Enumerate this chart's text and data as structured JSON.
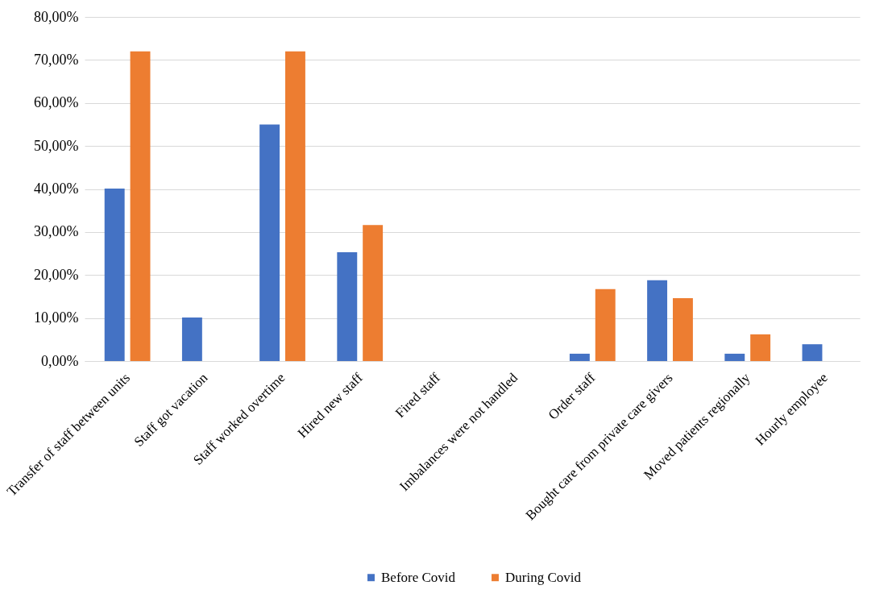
{
  "chart_data": {
    "type": "bar",
    "categories": [
      "Transfer of staff between units",
      "Staff got vacation",
      "Staff worked overtime",
      "Hired new staff",
      "Fired staff",
      "Imbalances were not handled",
      "Order staff",
      "Bought care from private care givers",
      "Moved patients regionally",
      "Hourly employee"
    ],
    "series": [
      {
        "name": "Before Covid",
        "color": "#4472c4",
        "values": [
          40.1,
          10.1,
          55,
          25.3,
          null,
          null,
          1.7,
          18.8,
          1.7,
          3.9
        ]
      },
      {
        "name": "During Covid",
        "color": "#ed7d31",
        "values": [
          72,
          null,
          72,
          31.6,
          null,
          null,
          16.7,
          14.6,
          6.2,
          null
        ]
      }
    ],
    "ylim": [
      0,
      80
    ],
    "yticks": [
      {
        "value": 0,
        "label": "0,00%"
      },
      {
        "value": 10,
        "label": "10,00%"
      },
      {
        "value": 20,
        "label": "20,00%"
      },
      {
        "value": 30,
        "label": "30,00%"
      },
      {
        "value": 40,
        "label": "40,00%"
      },
      {
        "value": 50,
        "label": "50,00%"
      },
      {
        "value": 60,
        "label": "60,00%"
      },
      {
        "value": 70,
        "label": "70,00%"
      },
      {
        "value": 80,
        "label": "80,00%"
      }
    ],
    "grid": "y",
    "legend": "bottom"
  }
}
